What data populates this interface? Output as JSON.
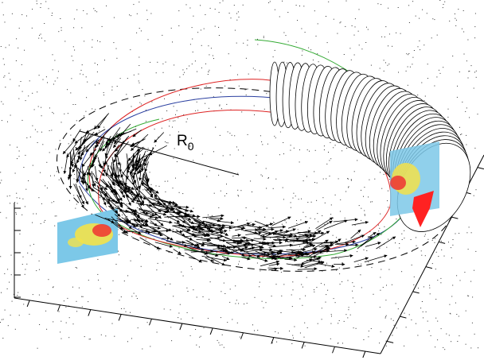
{
  "label": {
    "text": "R",
    "subscript": "0"
  }
}
